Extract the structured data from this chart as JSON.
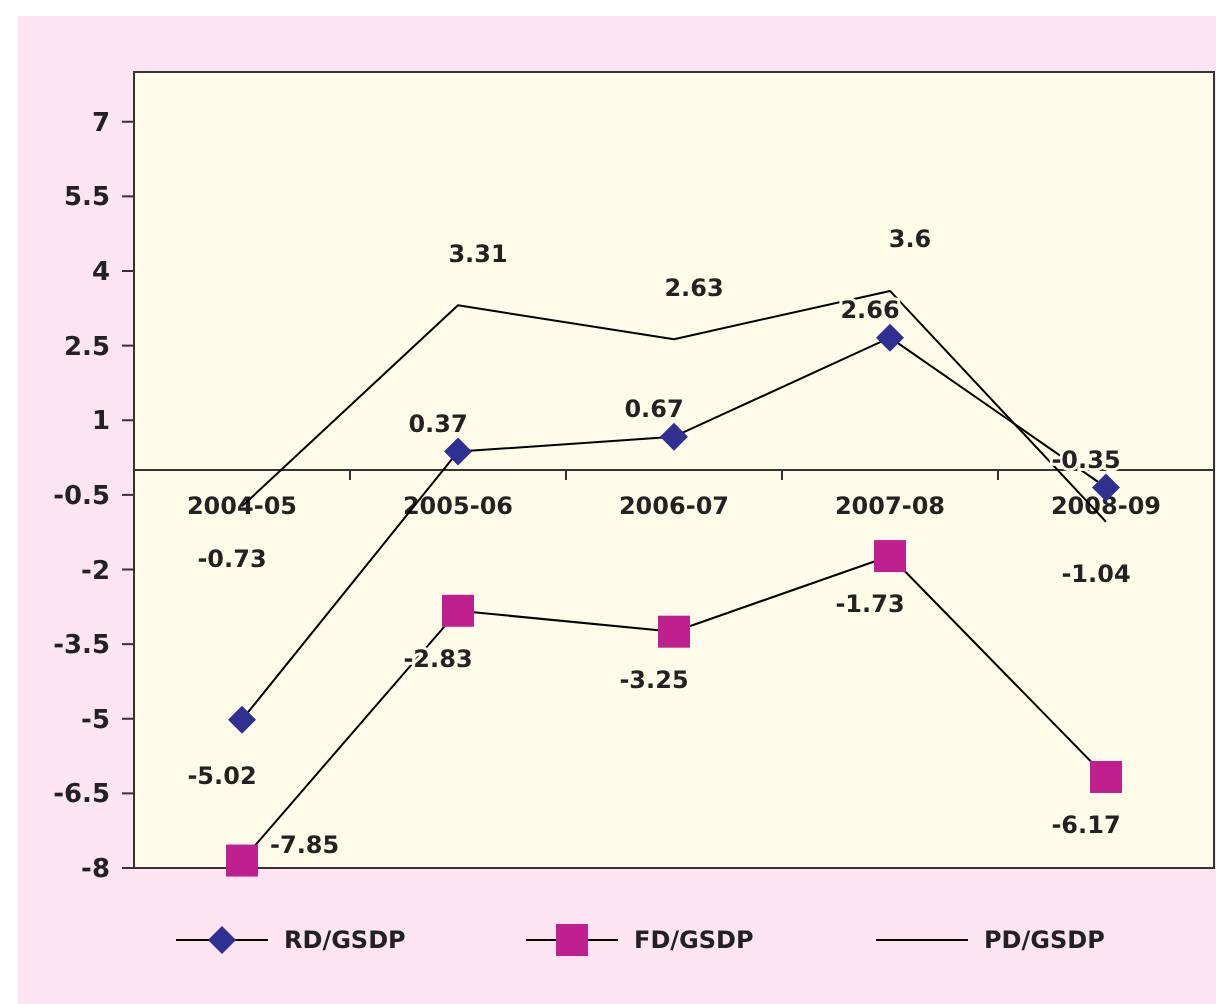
{
  "chart_data": {
    "type": "line",
    "categories": [
      "2004-05",
      "2005-06",
      "2006-07",
      "2007-08",
      "2008-09"
    ],
    "series": [
      {
        "name": "RD/GSDP",
        "color": "#2e3192",
        "marker": "diamond",
        "values": [
          -5.02,
          0.37,
          0.67,
          2.66,
          -0.35
        ]
      },
      {
        "name": "FD/GSDP",
        "color": "#c0208f",
        "marker": "square",
        "values": [
          -7.85,
          -2.83,
          -3.25,
          -1.73,
          -6.17
        ]
      },
      {
        "name": "PD/GSDP",
        "color": "#000000",
        "marker": "none",
        "values": [
          -0.73,
          3.31,
          2.63,
          3.6,
          -1.04
        ]
      }
    ],
    "ylim": [
      -8,
      8
    ],
    "yticks": [
      -8,
      -6.5,
      -5,
      -3.5,
      -2,
      -0.5,
      1,
      2.5,
      4,
      5.5,
      7
    ],
    "data_labels": true,
    "grid": false,
    "legend": "bottom"
  }
}
